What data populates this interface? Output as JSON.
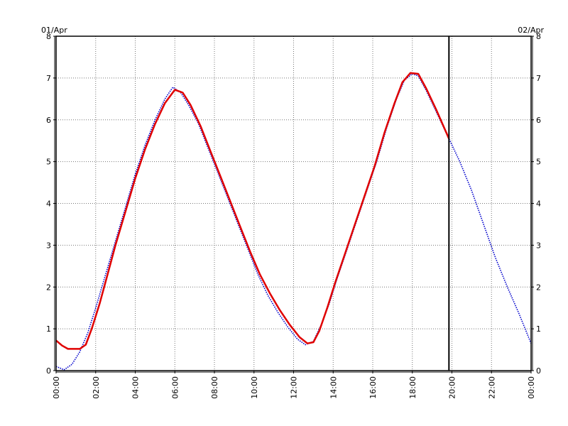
{
  "chart_data": {
    "type": "line",
    "title": "",
    "xlabel": "",
    "ylabel": "",
    "date_labels": {
      "left": "01/Apr",
      "right": "02/Apr"
    },
    "x_unit": "hours",
    "xlim": [
      0,
      24
    ],
    "ylim": [
      0,
      8
    ],
    "grid": true,
    "x_ticks": [
      {
        "value": 0,
        "label": "00:00"
      },
      {
        "value": 2,
        "label": "02:00"
      },
      {
        "value": 4,
        "label": "04:00"
      },
      {
        "value": 6,
        "label": "06:00"
      },
      {
        "value": 8,
        "label": "08:00"
      },
      {
        "value": 10,
        "label": "10:00"
      },
      {
        "value": 12,
        "label": "12:00"
      },
      {
        "value": 14,
        "label": "14:00"
      },
      {
        "value": 16,
        "label": "16:00"
      },
      {
        "value": 18,
        "label": "18:00"
      },
      {
        "value": 20,
        "label": "20:00"
      },
      {
        "value": 22,
        "label": "22:00"
      },
      {
        "value": 24,
        "label": "00:00"
      }
    ],
    "y_ticks": [
      0,
      1,
      2,
      3,
      4,
      5,
      6,
      7,
      8
    ],
    "marker_time": 19.85,
    "series": [
      {
        "color": "#0000cc",
        "style": "dotted",
        "points": [
          [
            0.0,
            0.1
          ],
          [
            0.4,
            0.02
          ],
          [
            0.8,
            0.15
          ],
          [
            1.2,
            0.45
          ],
          [
            1.6,
            0.9
          ],
          [
            2.0,
            1.5
          ],
          [
            2.5,
            2.3
          ],
          [
            3.0,
            3.1
          ],
          [
            3.5,
            3.9
          ],
          [
            4.0,
            4.7
          ],
          [
            4.5,
            5.4
          ],
          [
            5.0,
            6.0
          ],
          [
            5.5,
            6.5
          ],
          [
            5.9,
            6.78
          ],
          [
            6.3,
            6.65
          ],
          [
            6.7,
            6.35
          ],
          [
            7.2,
            5.9
          ],
          [
            7.7,
            5.3
          ],
          [
            8.2,
            4.7
          ],
          [
            8.7,
            4.1
          ],
          [
            9.2,
            3.5
          ],
          [
            9.7,
            2.9
          ],
          [
            10.2,
            2.3
          ],
          [
            10.7,
            1.8
          ],
          [
            11.2,
            1.4
          ],
          [
            11.7,
            1.05
          ],
          [
            12.2,
            0.75
          ],
          [
            12.6,
            0.62
          ],
          [
            13.0,
            0.7
          ],
          [
            13.4,
            1.1
          ],
          [
            13.8,
            1.6
          ],
          [
            14.2,
            2.2
          ],
          [
            14.7,
            2.9
          ],
          [
            15.2,
            3.6
          ],
          [
            15.7,
            4.3
          ],
          [
            16.2,
            5.0
          ],
          [
            16.7,
            5.8
          ],
          [
            17.2,
            6.5
          ],
          [
            17.6,
            6.95
          ],
          [
            18.0,
            7.1
          ],
          [
            18.3,
            7.05
          ],
          [
            18.7,
            6.7
          ],
          [
            19.2,
            6.2
          ],
          [
            19.8,
            5.6
          ],
          [
            20.4,
            5.0
          ],
          [
            21.0,
            4.3
          ],
          [
            21.6,
            3.5
          ],
          [
            22.2,
            2.7
          ],
          [
            22.8,
            2.0
          ],
          [
            23.4,
            1.35
          ],
          [
            24.0,
            0.65
          ]
        ]
      },
      {
        "color": "#e00000",
        "style": "solid",
        "points": [
          [
            0.0,
            0.72
          ],
          [
            0.3,
            0.6
          ],
          [
            0.6,
            0.52
          ],
          [
            0.9,
            0.52
          ],
          [
            1.2,
            0.52
          ],
          [
            1.5,
            0.62
          ],
          [
            1.8,
            1.0
          ],
          [
            2.2,
            1.6
          ],
          [
            2.6,
            2.3
          ],
          [
            3.0,
            3.0
          ],
          [
            3.5,
            3.8
          ],
          [
            4.0,
            4.6
          ],
          [
            4.5,
            5.3
          ],
          [
            5.0,
            5.9
          ],
          [
            5.5,
            6.4
          ],
          [
            6.0,
            6.72
          ],
          [
            6.4,
            6.65
          ],
          [
            6.8,
            6.35
          ],
          [
            7.3,
            5.85
          ],
          [
            7.8,
            5.25
          ],
          [
            8.3,
            4.65
          ],
          [
            8.8,
            4.05
          ],
          [
            9.3,
            3.45
          ],
          [
            9.8,
            2.85
          ],
          [
            10.3,
            2.3
          ],
          [
            10.8,
            1.85
          ],
          [
            11.3,
            1.45
          ],
          [
            11.8,
            1.1
          ],
          [
            12.3,
            0.8
          ],
          [
            12.7,
            0.65
          ],
          [
            13.0,
            0.68
          ],
          [
            13.3,
            0.95
          ],
          [
            13.7,
            1.5
          ],
          [
            14.1,
            2.1
          ],
          [
            14.6,
            2.8
          ],
          [
            15.1,
            3.5
          ],
          [
            15.6,
            4.2
          ],
          [
            16.1,
            4.9
          ],
          [
            16.6,
            5.7
          ],
          [
            17.1,
            6.4
          ],
          [
            17.5,
            6.9
          ],
          [
            17.9,
            7.12
          ],
          [
            18.3,
            7.1
          ],
          [
            18.7,
            6.75
          ],
          [
            19.2,
            6.25
          ],
          [
            19.85,
            5.55
          ]
        ]
      }
    ]
  }
}
